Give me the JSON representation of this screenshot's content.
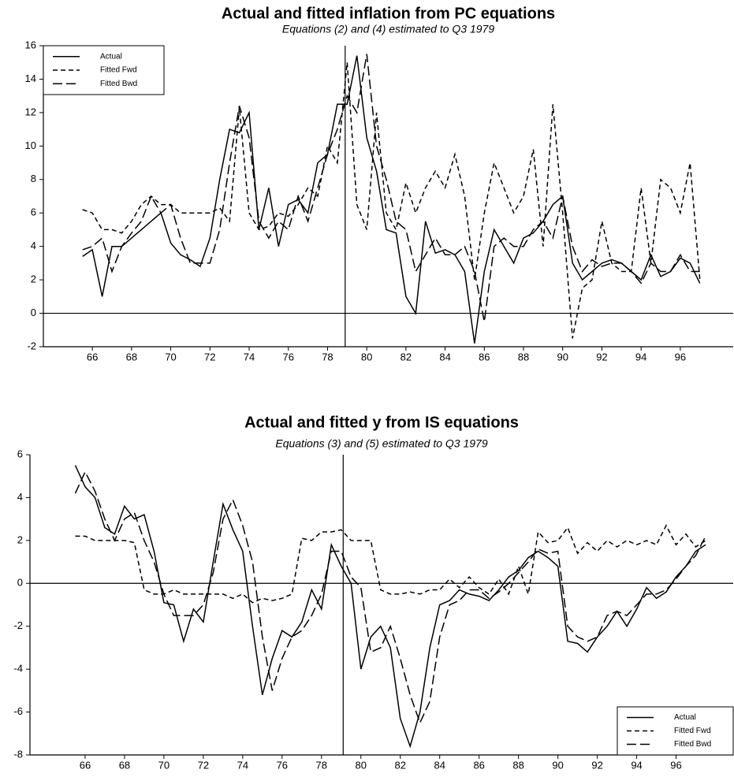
{
  "chart_data": [
    {
      "type": "line",
      "title": "Actual and fitted inflation from PC equations",
      "subtitle": "Equations (2) and (4) estimated to Q3 1979",
      "x": [
        65.5,
        66,
        66.5,
        67,
        67.5,
        68,
        68.5,
        69,
        69.5,
        70,
        70.5,
        71,
        71.5,
        72,
        72.5,
        73,
        73.5,
        74,
        74.5,
        75,
        75.5,
        76,
        76.5,
        77,
        77.5,
        78,
        78.5,
        79,
        79.5,
        80,
        80.5,
        81,
        81.5,
        82,
        82.5,
        83,
        83.5,
        84,
        84.5,
        85,
        85.5,
        86,
        86.5,
        87,
        87.5,
        88,
        88.5,
        89,
        89.5,
        90,
        90.5,
        91,
        91.5,
        92,
        92.5,
        93,
        93.5,
        94,
        94.5,
        95,
        95.5,
        96,
        96.5,
        97
      ],
      "series": [
        {
          "name": "Actual",
          "color": "#000000",
          "style": "solid",
          "values": [
            3.4,
            3.8,
            1.0,
            4.0,
            4.0,
            4.5,
            5.0,
            5.5,
            6.0,
            4.2,
            3.5,
            3.2,
            2.8,
            4.5,
            8.0,
            11.0,
            10.8,
            12.0,
            5.0,
            7.5,
            4.0,
            6.5,
            6.8,
            6.0,
            9.0,
            9.5,
            12.5,
            12.5,
            15.4,
            10.5,
            8.5,
            5.0,
            4.8,
            1.0,
            0.0,
            5.5,
            3.6,
            3.8,
            3.5,
            2.5,
            -1.8,
            2.5,
            5.0,
            4.0,
            3.0,
            4.5,
            4.8,
            5.5,
            6.5,
            7.0,
            3.0,
            2.0,
            2.5,
            3.0,
            3.2,
            3.0,
            2.5,
            2.0,
            3.5,
            2.2,
            2.5,
            3.3,
            3.0,
            1.8
          ]
        },
        {
          "name": "Fitted Fwd",
          "color": "#000000",
          "style": "short-dash",
          "values": [
            6.2,
            6.0,
            5.0,
            5.0,
            4.8,
            5.5,
            6.5,
            7.0,
            6.5,
            6.5,
            6.0,
            6.0,
            6.0,
            6.0,
            6.3,
            5.5,
            12.3,
            6.0,
            5.0,
            5.2,
            6.0,
            5.8,
            6.5,
            7.5,
            7.0,
            10.0,
            9.0,
            15.0,
            6.5,
            5.0,
            12.0,
            6.0,
            5.0,
            7.8,
            6.0,
            7.5,
            8.5,
            7.5,
            9.5,
            7.0,
            2.0,
            6.0,
            9.0,
            7.5,
            6.0,
            7.0,
            9.8,
            4.0,
            12.5,
            6.0,
            -1.5,
            1.5,
            2.0,
            5.5,
            3.0,
            2.5,
            2.5,
            7.5,
            3.0,
            8.0,
            7.5,
            6.0,
            9.0,
            2.0
          ]
        },
        {
          "name": "Fitted Bwd",
          "color": "#000000",
          "style": "long-dash",
          "values": [
            3.8,
            4.0,
            4.5,
            2.5,
            4.0,
            4.8,
            5.5,
            7.0,
            6.0,
            6.5,
            4.5,
            3.0,
            3.0,
            3.0,
            5.0,
            9.0,
            12.4,
            10.5,
            5.5,
            4.5,
            5.5,
            5.0,
            7.0,
            5.5,
            7.5,
            9.5,
            11.0,
            13.0,
            12.0,
            15.5,
            10.0,
            8.0,
            5.5,
            5.0,
            2.5,
            3.5,
            4.5,
            3.5,
            3.5,
            4.0,
            2.5,
            -0.5,
            4.0,
            4.5,
            4.0,
            4.0,
            5.0,
            5.5,
            4.5,
            7.0,
            4.0,
            2.5,
            3.2,
            2.8,
            3.0,
            3.0,
            2.5,
            1.8,
            3.0,
            2.5,
            2.5,
            3.5,
            2.5,
            2.5
          ]
        }
      ],
      "xlim": [
        63.5,
        98.7
      ],
      "xticks": [
        66,
        68,
        70,
        72,
        74,
        76,
        78,
        80,
        82,
        84,
        86,
        88,
        90,
        92,
        94,
        96
      ],
      "ylim": [
        -2,
        16
      ],
      "yticks": [
        -2,
        0,
        2,
        4,
        6,
        8,
        10,
        12,
        14,
        16
      ],
      "hline": 0,
      "vline": 78.9,
      "legend": "upper left"
    },
    {
      "type": "line",
      "title": "Actual and fitted y from IS equations",
      "subtitle": "Equations (3) and (5) estimated to Q3 1979",
      "x": [
        65.5,
        66,
        66.5,
        67,
        67.5,
        68,
        68.5,
        69,
        69.5,
        70,
        70.5,
        71,
        71.5,
        72,
        72.5,
        73,
        73.5,
        74,
        74.5,
        75,
        75.5,
        76,
        76.5,
        77,
        77.5,
        78,
        78.5,
        79,
        79.5,
        80,
        80.5,
        81,
        81.5,
        82,
        82.5,
        83,
        83.5,
        84,
        84.5,
        85,
        85.5,
        86,
        86.5,
        87,
        87.5,
        88,
        88.5,
        89,
        89.5,
        90,
        90.5,
        91,
        91.5,
        92,
        92.5,
        93,
        93.5,
        94,
        94.5,
        95,
        95.5,
        96,
        96.5,
        97,
        97.5
      ],
      "series": [
        {
          "name": "Actual",
          "color": "#000000",
          "style": "solid",
          "values": [
            5.5,
            4.5,
            4.0,
            2.6,
            2.3,
            3.6,
            3.0,
            3.2,
            1.5,
            -0.9,
            -1.0,
            -2.7,
            -1.2,
            -1.8,
            1.0,
            3.7,
            2.5,
            1.5,
            -2.0,
            -5.2,
            -3.5,
            -2.2,
            -2.5,
            -1.8,
            -0.3,
            -1.2,
            1.8,
            0.8,
            0.0,
            -4.0,
            -2.5,
            -2.0,
            -3.0,
            -6.3,
            -7.6,
            -6.0,
            -3.0,
            -1.0,
            -0.8,
            -0.3,
            -0.5,
            -0.6,
            -0.8,
            -0.3,
            0.3,
            0.6,
            1.2,
            1.5,
            1.2,
            0.8,
            -2.7,
            -2.8,
            -3.2,
            -2.5,
            -2.0,
            -1.3,
            -2.0,
            -1.2,
            -0.2,
            -0.7,
            -0.4,
            0.3,
            0.8,
            1.5,
            1.8
          ]
        },
        {
          "name": "Fitted Fwd",
          "color": "#000000",
          "style": "short-dash",
          "values": [
            2.2,
            2.2,
            2.0,
            2.0,
            2.0,
            2.0,
            1.9,
            -0.3,
            -0.5,
            -0.5,
            -0.3,
            -0.5,
            -0.5,
            -0.5,
            -0.5,
            -0.5,
            -0.7,
            -0.5,
            -0.9,
            -0.7,
            -0.8,
            -0.7,
            -0.5,
            2.1,
            2.0,
            2.4,
            2.4,
            2.5,
            2.0,
            2.0,
            2.0,
            -0.3,
            -0.5,
            -0.5,
            -0.4,
            -0.5,
            -0.3,
            -0.3,
            0.2,
            -0.2,
            0.3,
            -0.2,
            -0.5,
            0.2,
            -0.5,
            0.8,
            -0.5,
            2.4,
            1.9,
            2.0,
            2.6,
            1.4,
            1.9,
            1.5,
            2.0,
            1.7,
            2.0,
            1.8,
            2.0,
            1.8,
            2.7,
            1.8,
            2.3,
            1.7,
            2.0
          ]
        },
        {
          "name": "Fitted Bwd",
          "color": "#000000",
          "style": "long-dash",
          "values": [
            4.2,
            5.2,
            4.3,
            3.0,
            2.0,
            3.0,
            3.3,
            2.0,
            1.0,
            -0.5,
            -1.5,
            -1.5,
            -1.5,
            -1.0,
            0.5,
            3.0,
            3.9,
            2.7,
            1.0,
            -2.5,
            -5.0,
            -3.5,
            -2.5,
            -2.2,
            -1.5,
            -0.5,
            1.5,
            1.5,
            0.3,
            -0.2,
            -3.2,
            -3.0,
            -2.0,
            -3.5,
            -5.2,
            -6.5,
            -5.5,
            -2.5,
            -1.0,
            -0.8,
            -0.3,
            -0.3,
            -0.7,
            -0.4,
            0.0,
            0.5,
            1.0,
            1.6,
            1.4,
            1.5,
            -2.0,
            -2.5,
            -2.7,
            -2.5,
            -1.5,
            -1.3,
            -1.5,
            -1.0,
            -0.5,
            -0.5,
            -0.3,
            0.2,
            0.8,
            1.3,
            2.2
          ]
        }
      ],
      "xlim": [
        63.2,
        98.9
      ],
      "xticks": [
        66,
        68,
        70,
        72,
        74,
        76,
        78,
        80,
        82,
        84,
        86,
        88,
        90,
        92,
        94,
        96
      ],
      "ylim": [
        -8,
        6
      ],
      "yticks": [
        -8,
        -6,
        -4,
        -2,
        0,
        2,
        4,
        6
      ],
      "hline": 0,
      "vline": 79.1,
      "legend": "lower right"
    }
  ]
}
